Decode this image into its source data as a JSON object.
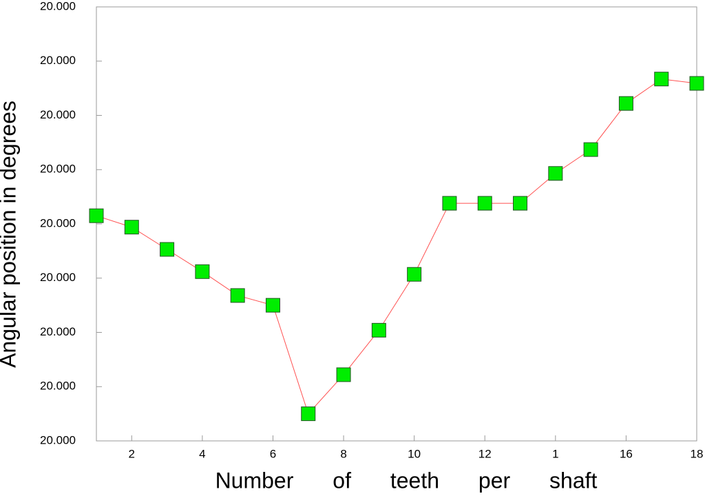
{
  "chart_data": {
    "type": "line",
    "xlabel": "Number of teeth per shaft",
    "ylabel": "Angular position in degrees",
    "x": [
      1,
      2,
      3,
      4,
      5,
      6,
      7,
      8,
      9,
      10,
      11,
      12,
      13,
      14,
      15,
      16,
      17,
      18
    ],
    "series": [
      {
        "color": "#ff5050",
        "marker_color": "#00ee00",
        "values": [
          4.15,
          3.94,
          3.53,
          3.12,
          2.68,
          2.5,
          0.5,
          1.22,
          2.04,
          3.07,
          4.38,
          4.38,
          4.38,
          4.93,
          5.37,
          6.22,
          6.67,
          6.59
        ]
      }
    ],
    "xlim": [
      1,
      18
    ],
    "xticks": [
      2,
      4,
      6,
      8,
      10,
      12,
      {
        "value": 14,
        "label": "1"
      },
      16,
      18
    ],
    "ylim": [
      0,
      8
    ],
    "yticks": [
      {
        "value": 0,
        "label": "20.000"
      },
      {
        "value": 1,
        "label": "20.000"
      },
      {
        "value": 2,
        "label": "20.000"
      },
      {
        "value": 3,
        "label": "20.000"
      },
      {
        "value": 4,
        "label": "20.000"
      },
      {
        "value": 5,
        "label": "20.000"
      },
      {
        "value": 6,
        "label": "20.000"
      },
      {
        "value": 7,
        "label": "20.000"
      },
      {
        "value": 8,
        "label": "20.000"
      }
    ]
  }
}
